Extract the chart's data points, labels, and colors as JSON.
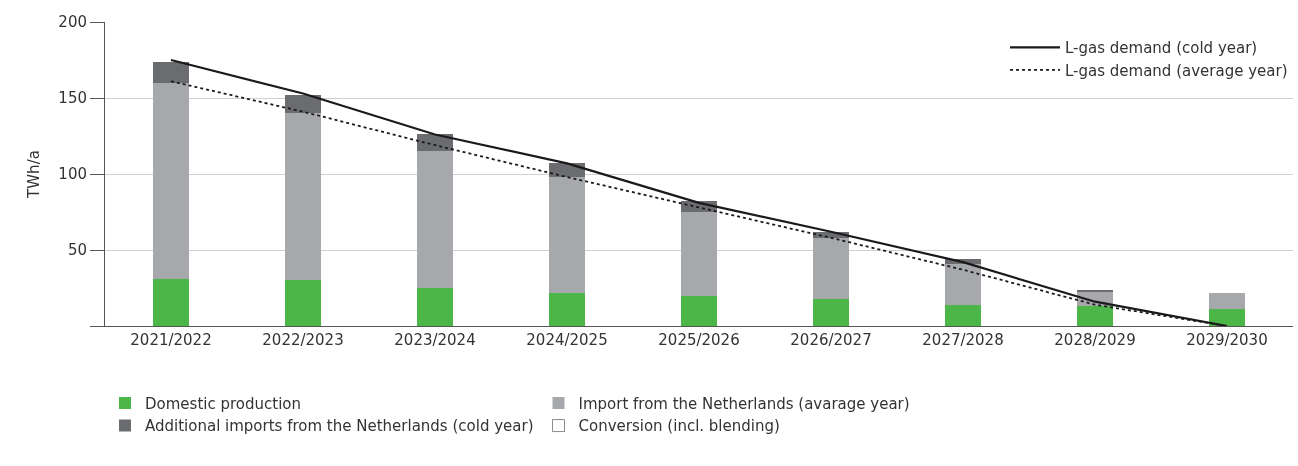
{
  "chart_data": {
    "type": "bar",
    "stacked": true,
    "ylabel": "TWh/a",
    "categories": [
      "2021/2022",
      "2022/2023",
      "2023/2024",
      "2024/2025",
      "2025/2026",
      "2026/2027",
      "2027/2028",
      "2028/2029",
      "2029/2030"
    ],
    "series": [
      {
        "name": "Domestic production",
        "color": "#4cb748",
        "values": [
          31,
          30,
          25,
          22,
          20,
          18,
          14,
          13,
          11
        ]
      },
      {
        "name": "Import from the Netherlands (avarage year)",
        "color": "#a7a8ab",
        "values": [
          129,
          110,
          90,
          76,
          55,
          40,
          27,
          10,
          11
        ]
      },
      {
        "name": "Additional imports from the Netherlands (cold year)",
        "color": "#6b6c70",
        "values": [
          14,
          12,
          11,
          9,
          7,
          4,
          3,
          1,
          0
        ]
      },
      {
        "name": "Conversion (incl. blending)",
        "color": "#ffffff",
        "values": [
          null,
          null,
          null,
          null,
          null,
          null,
          null,
          null,
          null
        ]
      },
      {
        "name": "L-gas demand (cold year)",
        "type": "line",
        "color": "#1a1a1a",
        "line_style": "solid",
        "values": [
          175,
          153,
          126,
          107,
          81,
          62,
          42,
          16,
          0
        ]
      },
      {
        "name": "L-gas demand (average year)",
        "type": "line",
        "color": "#1a1a1a",
        "line_style": "dotted",
        "values": [
          161,
          141,
          119,
          98,
          78,
          58,
          37,
          14,
          0
        ]
      }
    ],
    "ylim": [
      0,
      200
    ],
    "yticks": [
      {
        "value": 0,
        "label": null
      },
      50,
      100,
      150,
      200
    ],
    "grid": "y",
    "legend": "bottom",
    "marker": "none"
  }
}
